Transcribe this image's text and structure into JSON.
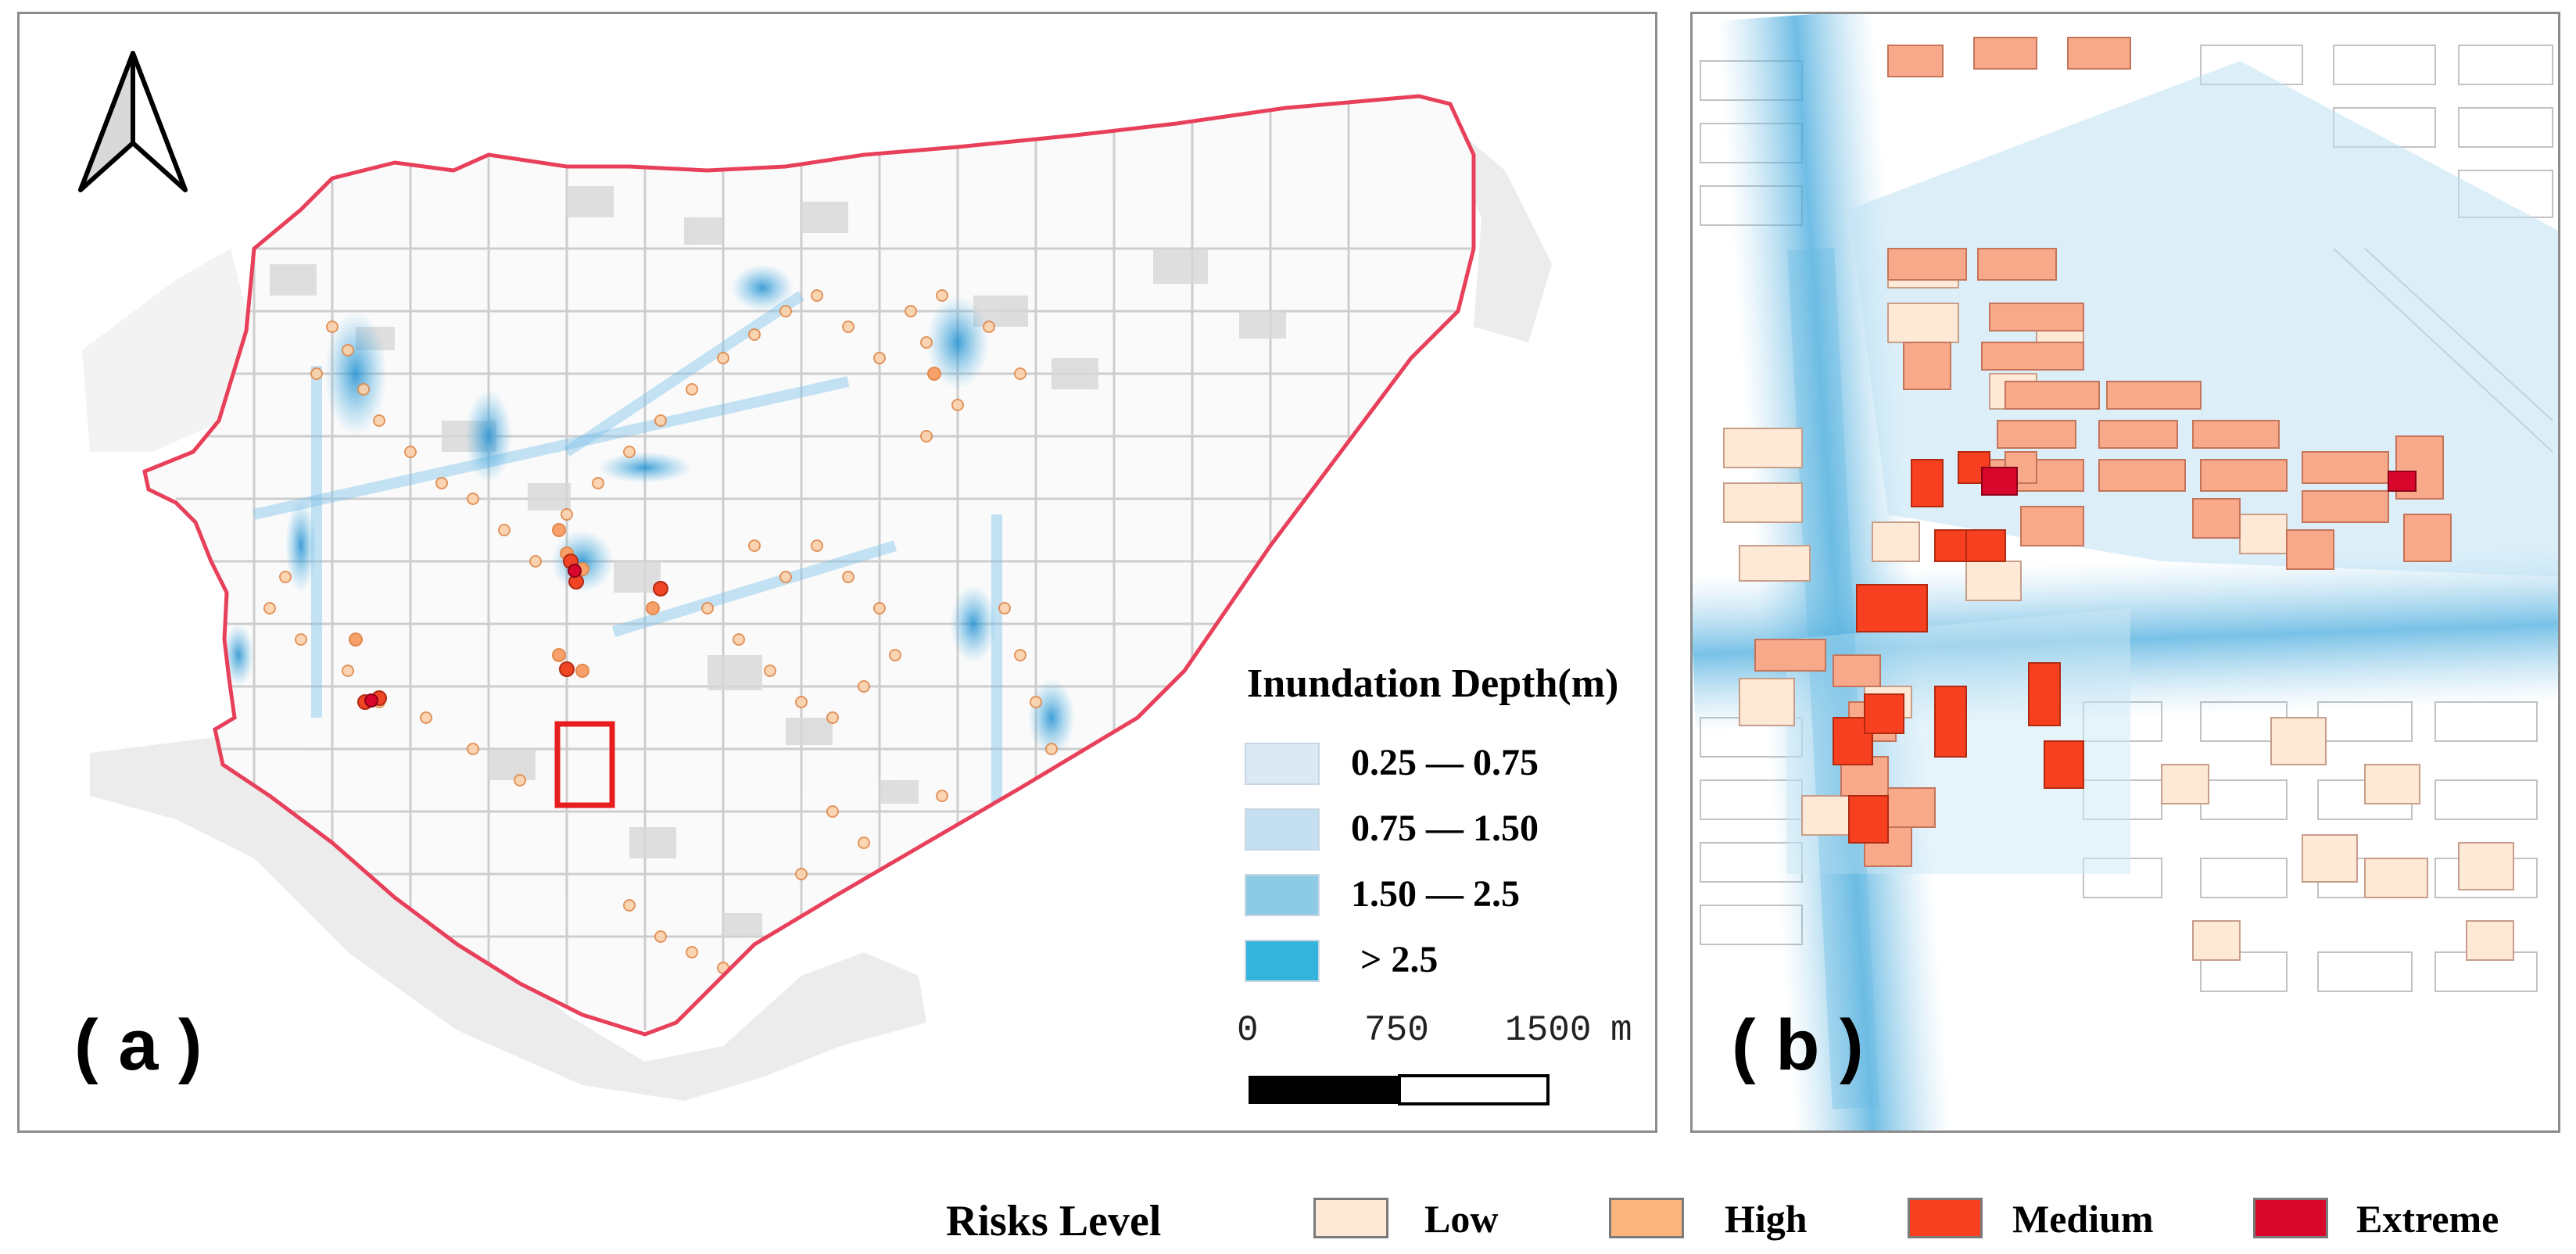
{
  "panels": {
    "a": {
      "label": "( a )"
    },
    "b": {
      "label": "( b )"
    }
  },
  "inundation_legend": {
    "title": "Inundation Depth(m)",
    "classes": [
      {
        "label": "0.25 — 0.75",
        "color": "#dbe9f5"
      },
      {
        "label": "0.75 — 1.50",
        "color": "#c4dff0"
      },
      {
        "label": "1.50 — 2.5",
        "color": "#8ccbe3"
      },
      {
        "label": "> 2.5",
        "color": "#34b4dc"
      }
    ]
  },
  "scale_bar": {
    "ticks": [
      "0",
      "750",
      "1500"
    ],
    "unit": "m"
  },
  "risk_legend": {
    "title": "Risks Level",
    "classes": [
      {
        "label": "Low",
        "color": "#fde9d6"
      },
      {
        "label": "High",
        "color": "#fdb57e"
      },
      {
        "label": "Medium",
        "color": "#f7401f"
      },
      {
        "label": "Extreme",
        "color": "#d8062b"
      }
    ]
  },
  "colors": {
    "boundary": "#e8405a",
    "highlight_box": "#e81e1e",
    "frame": "#8c8c8c"
  },
  "icons": {
    "north_arrow": "north-arrow-icon"
  }
}
